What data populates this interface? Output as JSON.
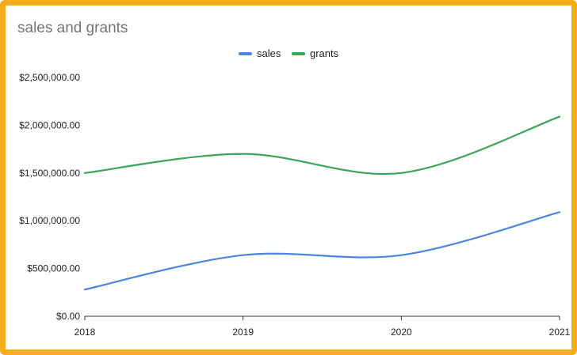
{
  "chart_data": {
    "type": "line",
    "title": "sales and grants",
    "xlabel": "",
    "ylabel": "",
    "x": [
      "2018",
      "2019",
      "2020",
      "2021"
    ],
    "series": [
      {
        "name": "sales",
        "color": "#4a86e0",
        "values": [
          280000,
          640000,
          640000,
          1090000
        ]
      },
      {
        "name": "grants",
        "color": "#3aa655",
        "values": [
          1500000,
          1700000,
          1500000,
          2090000
        ]
      }
    ],
    "ylim": [
      0,
      2500000
    ],
    "yticks": [
      {
        "value": 0,
        "label": "$0.00"
      },
      {
        "value": 500000,
        "label": "$500,000.00"
      },
      {
        "value": 1000000,
        "label": "$1,000,000.00"
      },
      {
        "value": 1500000,
        "label": "$1,500,000.00"
      },
      {
        "value": 2000000,
        "label": "$2,000,000.00"
      },
      {
        "value": 2500000,
        "label": "$2,500,000.00"
      }
    ],
    "legend_position": "top-center",
    "grid": false,
    "curve": "smooth"
  }
}
